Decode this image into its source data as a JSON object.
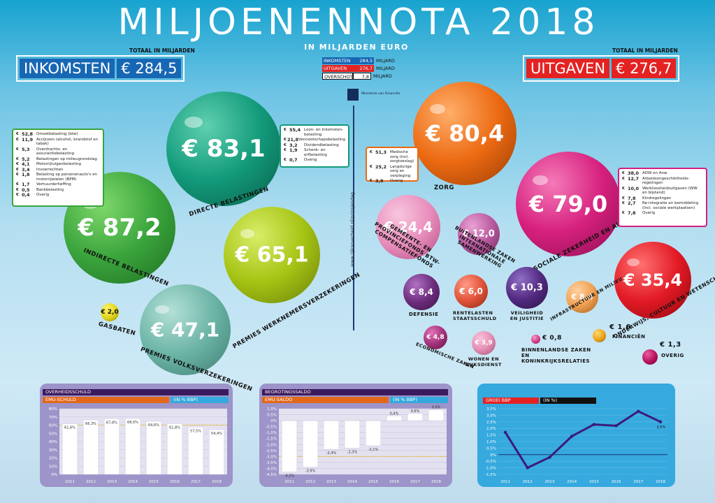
{
  "title": "MILJOENENNOTA 2018",
  "subtitle": "IN MILJARDEN EURO",
  "income": {
    "header": "TOTAAL IN MILJARDEN",
    "label": "INKOMSTEN",
    "value": "€ 284,5"
  },
  "expenses": {
    "header": "TOTAAL IN MILJARDEN",
    "label": "UITGAVEN",
    "value": "€ 276,7"
  },
  "summary": [
    {
      "label": "INKOMSTEN",
      "value": "284,5",
      "unit": "MILJARD",
      "color": "#1767b4"
    },
    {
      "label": "UITGAVEN",
      "value": "276,7",
      "unit": "MILJARD",
      "color": "#e42222"
    },
    {
      "label": "OVERSCHOT",
      "value": "7,8",
      "unit": "MILJARD",
      "color": "#ffffff"
    }
  ],
  "ministry": "Ministerie van Financiën",
  "url": "www.rijksoverheid.nl/prinsjesdag",
  "bubbles": {
    "indirect": {
      "amount": "€ 87,2",
      "label": "INDIRECTE BELASTINGEN",
      "color": "#3aa43c"
    },
    "direct": {
      "amount": "€ 83,1",
      "label": "DIRECTE BELASTINGEN",
      "color": "#129a7a"
    },
    "werknemers": {
      "amount": "€ 65,1",
      "label": "PREMIES WERKNEMERSVERZEKERINGEN",
      "color": "#a6c414"
    },
    "volks": {
      "amount": "€ 47,1",
      "label": "PREMIES VOLKSVERZEKERINGEN",
      "color": "#6bb4a6"
    },
    "gas": {
      "amount": "€ 2,0",
      "label": "GASBATEN",
      "color": "#e0d41a"
    },
    "zorg": {
      "amount": "€ 80,4",
      "label": "ZORG",
      "color": "#ec6a12"
    },
    "sociale": {
      "amount": "€ 79,0",
      "label": "SOCIALE ZEKERHEID EN ARBEIDSMARKT",
      "color": "#d6207e"
    },
    "gemeente": {
      "amount": "€ 24,4",
      "label": "GEMEENTE- EN PROVINCIEFONDS BTW-COMPENSATIEFONDS",
      "color": "#e98fbd"
    },
    "buitenland": {
      "amount": "€ 12,0",
      "label": "BUITENLANDSE ZAKEN INTERNATIONALE SAMENWERKING",
      "color": "#b95aa0"
    },
    "onderwijs": {
      "amount": "€ 35,4",
      "label": "ONDERWIJS, CULTUUR EN WETENSCHAP",
      "color": "#e21a25"
    },
    "defensie": {
      "amount": "€ 8,4",
      "label": "DEFENSIE",
      "color": "#6e2d7e"
    },
    "rente": {
      "amount": "€ 6,0",
      "label": "RENTELASTEN STAATSSCHULD",
      "color": "#e2543a"
    },
    "veiligheid": {
      "amount": "€ 10,3",
      "label": "VEILIGHEID EN JUSTITIE",
      "color": "#542a82"
    },
    "infra": {
      "amount": "€ 8,4",
      "label": "INFRASTRUCTUUR EN MILIEU",
      "color": "#f0a253"
    },
    "economisch": {
      "amount": "€ 4,8",
      "label": "ECONOMISCHE ZAKEN",
      "color": "#a5327d"
    },
    "wonen": {
      "amount": "€ 3,9",
      "label": "WONEN EN RIJKSDIENST",
      "color": "#e48fb5"
    },
    "binnenland": {
      "amount": "€ 0,8",
      "label": "BINNENLANDSE ZAKEN EN KONINKRIJKSRELATIES",
      "color": "#d63a8a"
    },
    "financien": {
      "amount": "€ 1,6",
      "label": "FINANCIËN",
      "color": "#e9a21a"
    },
    "overig": {
      "amount": "€ 1,3",
      "label": "OVERIG",
      "color": "#b5125a"
    }
  },
  "lists": {
    "indirect": [
      {
        "amount": "52,8",
        "text": "Omzetbelasting (btw)"
      },
      {
        "amount": "11,9",
        "text": "Accijnzen (alcohol, brandstof en tabak)"
      },
      {
        "amount": "5,3",
        "text": "Overdrachts- en assurantiebelasting"
      },
      {
        "amount": "5,2",
        "text": "Belastingen op milieugrondslag"
      },
      {
        "amount": "4,1",
        "text": "Motorrijtuigenbelasting"
      },
      {
        "amount": "3,4",
        "text": "Invoerrechten"
      },
      {
        "amount": "1,8",
        "text": "Belasting op personenauto's en motorrijwielen (BPM)"
      },
      {
        "amount": "1,7",
        "text": "Verhuurderheffing"
      },
      {
        "amount": "0,5",
        "text": "Bankbelasting"
      },
      {
        "amount": "0,4",
        "text": "Overig"
      }
    ],
    "direct": [
      {
        "amount": "55,4",
        "text": "Loon- en inkomsten-belasting"
      },
      {
        "amount": "21,8",
        "text": "Vennootschapsbelasting"
      },
      {
        "amount": "3,2",
        "text": "Dividendbelasting"
      },
      {
        "amount": "1,9",
        "text": "Schenk- en erfbelasting"
      },
      {
        "amount": "0,7",
        "text": "Overig"
      }
    ],
    "zorg": [
      {
        "amount": "51,3",
        "text": "Medische zorg (incl. zorgtoeslag)"
      },
      {
        "amount": "25,2",
        "text": "Langdurige zorg en verpleging"
      },
      {
        "amount": "3,9",
        "text": "Overig"
      }
    ],
    "sociale": [
      {
        "amount": "38,0",
        "text": "AOW en Anw"
      },
      {
        "amount": "12,7",
        "text": "Arbeidsongeschiktheids-regelingen"
      },
      {
        "amount": "10,0",
        "text": "Werkloosheidsuitgaven (WW en bijstand)"
      },
      {
        "amount": "7,8",
        "text": "Kindregelingen"
      },
      {
        "amount": "2,7",
        "text": "Re-integratie en bemiddeling (incl. sociale werkplaatsen)"
      },
      {
        "amount": "7,8",
        "text": "Overig"
      }
    ]
  },
  "chart_data": [
    {
      "type": "bar",
      "title": "OVERHEIDSSCHULD",
      "series_label": "EMU-SCHULD",
      "unit_label": "(IN % BBP)",
      "categories": [
        "2011",
        "2012",
        "2013",
        "2014",
        "2015",
        "2016",
        "2017",
        "2018"
      ],
      "values": [
        61.6,
        66.3,
        67.8,
        68.0,
        64.6,
        61.8,
        57.5,
        54.4
      ],
      "labels": [
        "61,6%",
        "66,3%",
        "67,8%",
        "68,0%",
        "64,6%",
        "61,8%",
        "57,5%",
        "54,4%"
      ],
      "y_ticks": [
        "0%",
        "10%",
        "20%",
        "30%",
        "40%",
        "50%",
        "60%",
        "70%",
        "80%"
      ],
      "ylim": [
        0,
        80
      ],
      "reference_line": 60,
      "bar_color": "#ffffff",
      "panel_color": "#9d94c9"
    },
    {
      "type": "bar",
      "title": "BEGROTINGSSALDO",
      "series_label": "EMU-SALDO",
      "unit_label": "(IN % BBP)",
      "categories": [
        "2011",
        "2012",
        "2013",
        "2014",
        "2015",
        "2016",
        "2017",
        "2018"
      ],
      "values": [
        -4.3,
        -3.9,
        -2.4,
        -2.3,
        -2.1,
        0.4,
        0.6,
        0.9
      ],
      "labels": [
        "-4,3%",
        "-3,9%",
        "-2,4%",
        "-2,3%",
        "-2,1%",
        "0,4%",
        "0,6%",
        "0,9%"
      ],
      "y_ticks": [
        "1,0%",
        "0,5%",
        "0%",
        "-0,5%",
        "-1,0%",
        "-1,5%",
        "-2,0%",
        "-2,5%",
        "-3,0%",
        "-3,5%",
        "-4,0%",
        "-4,5%"
      ],
      "ylim": [
        -4.5,
        1.0
      ],
      "reference_line": -3.0,
      "bar_color": "#ffffff",
      "panel_color": "#9d94c9"
    },
    {
      "type": "line",
      "title": "GROEI BBP",
      "unit_label": "(IN %)",
      "categories": [
        "2011",
        "2012",
        "2013",
        "2014",
        "2015",
        "2016",
        "2017",
        "2018"
      ],
      "values": [
        1.7,
        -1.0,
        -0.2,
        1.4,
        2.3,
        2.2,
        3.3,
        2.5
      ],
      "last_label": "2,5%",
      "y_ticks": [
        "3,5%",
        "3,0%",
        "2,5%",
        "2,0%",
        "1,5%",
        "1,0%",
        "0,5%",
        "0%",
        "-0,5%",
        "-1,0%",
        "-1,5%"
      ],
      "ylim": [
        -1.5,
        3.5
      ],
      "line_color": "#3b1a7a",
      "panel_color": "#36a9de"
    }
  ]
}
